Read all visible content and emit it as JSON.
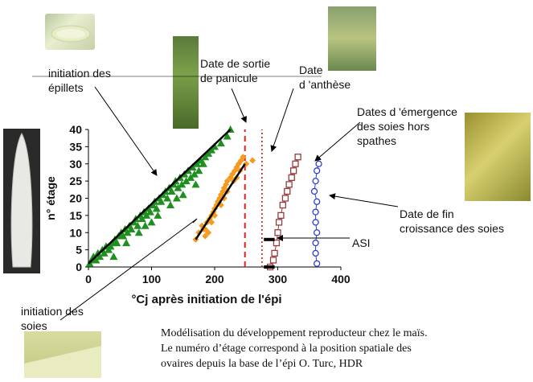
{
  "colors": {
    "triangles": "#1f8f1f",
    "diamonds": "#f59a1e",
    "squares": "#9a3b3b",
    "circles": "#2b3fcf",
    "fit_line": "#000000",
    "panicle_line": "#e0201a",
    "anthesis_line": "#d01818"
  },
  "icons": {
    "spike": "plant-photo-icon"
  },
  "annotations": {
    "initiation_epillets": [
      "initiation des",
      "épillets"
    ],
    "sortie_panicule": [
      "Date de sortie",
      "de panicule"
    ],
    "anthese": [
      "Date",
      "d 'anthèse"
    ],
    "emergence": [
      "Dates d 'émergence",
      "des soies hors",
      "spathes"
    ],
    "fin_croissance": [
      "Date de fin",
      "croissance des soies"
    ],
    "asi": "ASI",
    "initiation_soies": [
      "initiation des",
      "soies"
    ]
  },
  "caption": [
    "Modélisation du développement reproducteur chez le maïs.",
    "Le numéro d’étage correspond à la position spatiale des",
    "ovaires depuis la base de l’épi O. Turc, HDR"
  ],
  "chart_data": {
    "type": "scatter",
    "xlabel": "°Cj après initiation de l'épi",
    "ylabel": "n° étage",
    "xlim": [
      0,
      400
    ],
    "ylim": [
      0,
      40
    ],
    "xticks": [
      0,
      100,
      200,
      300,
      400
    ],
    "yticks": [
      0,
      5,
      10,
      15,
      20,
      25,
      30,
      35,
      40
    ],
    "grid": false,
    "series": [
      {
        "marker": "triangle",
        "points": [
          [
            2,
            1
          ],
          [
            5,
            2
          ],
          [
            8,
            3
          ],
          [
            12,
            2
          ],
          [
            15,
            4
          ],
          [
            18,
            3
          ],
          [
            22,
            5
          ],
          [
            25,
            4
          ],
          [
            28,
            6
          ],
          [
            32,
            5
          ],
          [
            35,
            6
          ],
          [
            38,
            7
          ],
          [
            42,
            8
          ],
          [
            45,
            7
          ],
          [
            48,
            9
          ],
          [
            52,
            10
          ],
          [
            55,
            9
          ],
          [
            58,
            11
          ],
          [
            62,
            10
          ],
          [
            65,
            12
          ],
          [
            68,
            11
          ],
          [
            72,
            13
          ],
          [
            75,
            14
          ],
          [
            78,
            12
          ],
          [
            82,
            15
          ],
          [
            85,
            14
          ],
          [
            88,
            16
          ],
          [
            92,
            15
          ],
          [
            95,
            17
          ],
          [
            98,
            16
          ],
          [
            102,
            18
          ],
          [
            105,
            19
          ],
          [
            108,
            17
          ],
          [
            112,
            20
          ],
          [
            115,
            19
          ],
          [
            118,
            21
          ],
          [
            122,
            22
          ],
          [
            125,
            20
          ],
          [
            128,
            23
          ],
          [
            132,
            22
          ],
          [
            135,
            24
          ],
          [
            138,
            25
          ],
          [
            142,
            23
          ],
          [
            145,
            26
          ],
          [
            148,
            24
          ],
          [
            152,
            27
          ],
          [
            155,
            25
          ],
          [
            158,
            28
          ],
          [
            162,
            26
          ],
          [
            165,
            29
          ],
          [
            168,
            27
          ],
          [
            172,
            30
          ],
          [
            175,
            28
          ],
          [
            178,
            31
          ],
          [
            182,
            30
          ],
          [
            185,
            32
          ],
          [
            190,
            33
          ],
          [
            195,
            34
          ],
          [
            200,
            35
          ],
          [
            210,
            36
          ],
          [
            220,
            38
          ],
          [
            225,
            40
          ],
          [
            40,
            3
          ],
          [
            60,
            7
          ],
          [
            90,
            12
          ],
          [
            110,
            15
          ],
          [
            130,
            18
          ],
          [
            150,
            21
          ],
          [
            170,
            24
          ],
          [
            80,
            10
          ],
          [
            100,
            13
          ],
          [
            140,
            20
          ]
        ]
      },
      {
        "marker": "diamond",
        "points": [
          [
            170,
            8
          ],
          [
            175,
            10
          ],
          [
            180,
            12
          ],
          [
            185,
            11
          ],
          [
            188,
            13
          ],
          [
            192,
            14
          ],
          [
            195,
            15
          ],
          [
            198,
            16
          ],
          [
            200,
            17
          ],
          [
            203,
            18
          ],
          [
            205,
            19
          ],
          [
            208,
            20
          ],
          [
            210,
            21
          ],
          [
            213,
            22
          ],
          [
            215,
            23
          ],
          [
            218,
            24
          ],
          [
            220,
            25
          ],
          [
            225,
            26
          ],
          [
            228,
            27
          ],
          [
            232,
            28
          ],
          [
            235,
            29
          ],
          [
            238,
            30
          ],
          [
            242,
            31
          ],
          [
            245,
            32
          ],
          [
            190,
            10
          ],
          [
            185,
            9
          ],
          [
            200,
            15
          ],
          [
            210,
            18
          ],
          [
            220,
            22
          ],
          [
            230,
            25
          ],
          [
            240,
            28
          ],
          [
            182,
            11
          ],
          [
            195,
            13
          ],
          [
            215,
            20
          ],
          [
            235,
            26
          ],
          [
            250,
            30
          ],
          [
            260,
            31
          ]
        ]
      },
      {
        "marker": "square",
        "points": [
          [
            288,
            0
          ],
          [
            293,
            2
          ],
          [
            295,
            4
          ],
          [
            298,
            7
          ],
          [
            300,
            10
          ],
          [
            302,
            13
          ],
          [
            305,
            15
          ],
          [
            308,
            18
          ],
          [
            312,
            20
          ],
          [
            315,
            22
          ],
          [
            318,
            24
          ],
          [
            322,
            26
          ],
          [
            325,
            28
          ],
          [
            328,
            30
          ],
          [
            332,
            32
          ]
        ]
      },
      {
        "marker": "circle",
        "points": [
          [
            362,
            1
          ],
          [
            360,
            4
          ],
          [
            360,
            7
          ],
          [
            362,
            10
          ],
          [
            360,
            13
          ],
          [
            360,
            16
          ],
          [
            362,
            19
          ],
          [
            358,
            22
          ],
          [
            360,
            25
          ],
          [
            362,
            28
          ],
          [
            365,
            30
          ]
        ]
      }
    ],
    "fit_lines": [
      {
        "from": [
          0,
          1
        ],
        "to": [
          225,
          40
        ]
      },
      {
        "from": [
          170,
          8
        ],
        "to": [
          248,
          30
        ]
      }
    ],
    "vlines": [
      {
        "x": 248,
        "style": "dashed"
      },
      {
        "x": 275,
        "style": "dotted"
      }
    ],
    "asi_bars": [
      {
        "y": 8,
        "from": 278,
        "to": 295
      },
      {
        "y": 0,
        "from": 278,
        "to": 295
      }
    ]
  }
}
